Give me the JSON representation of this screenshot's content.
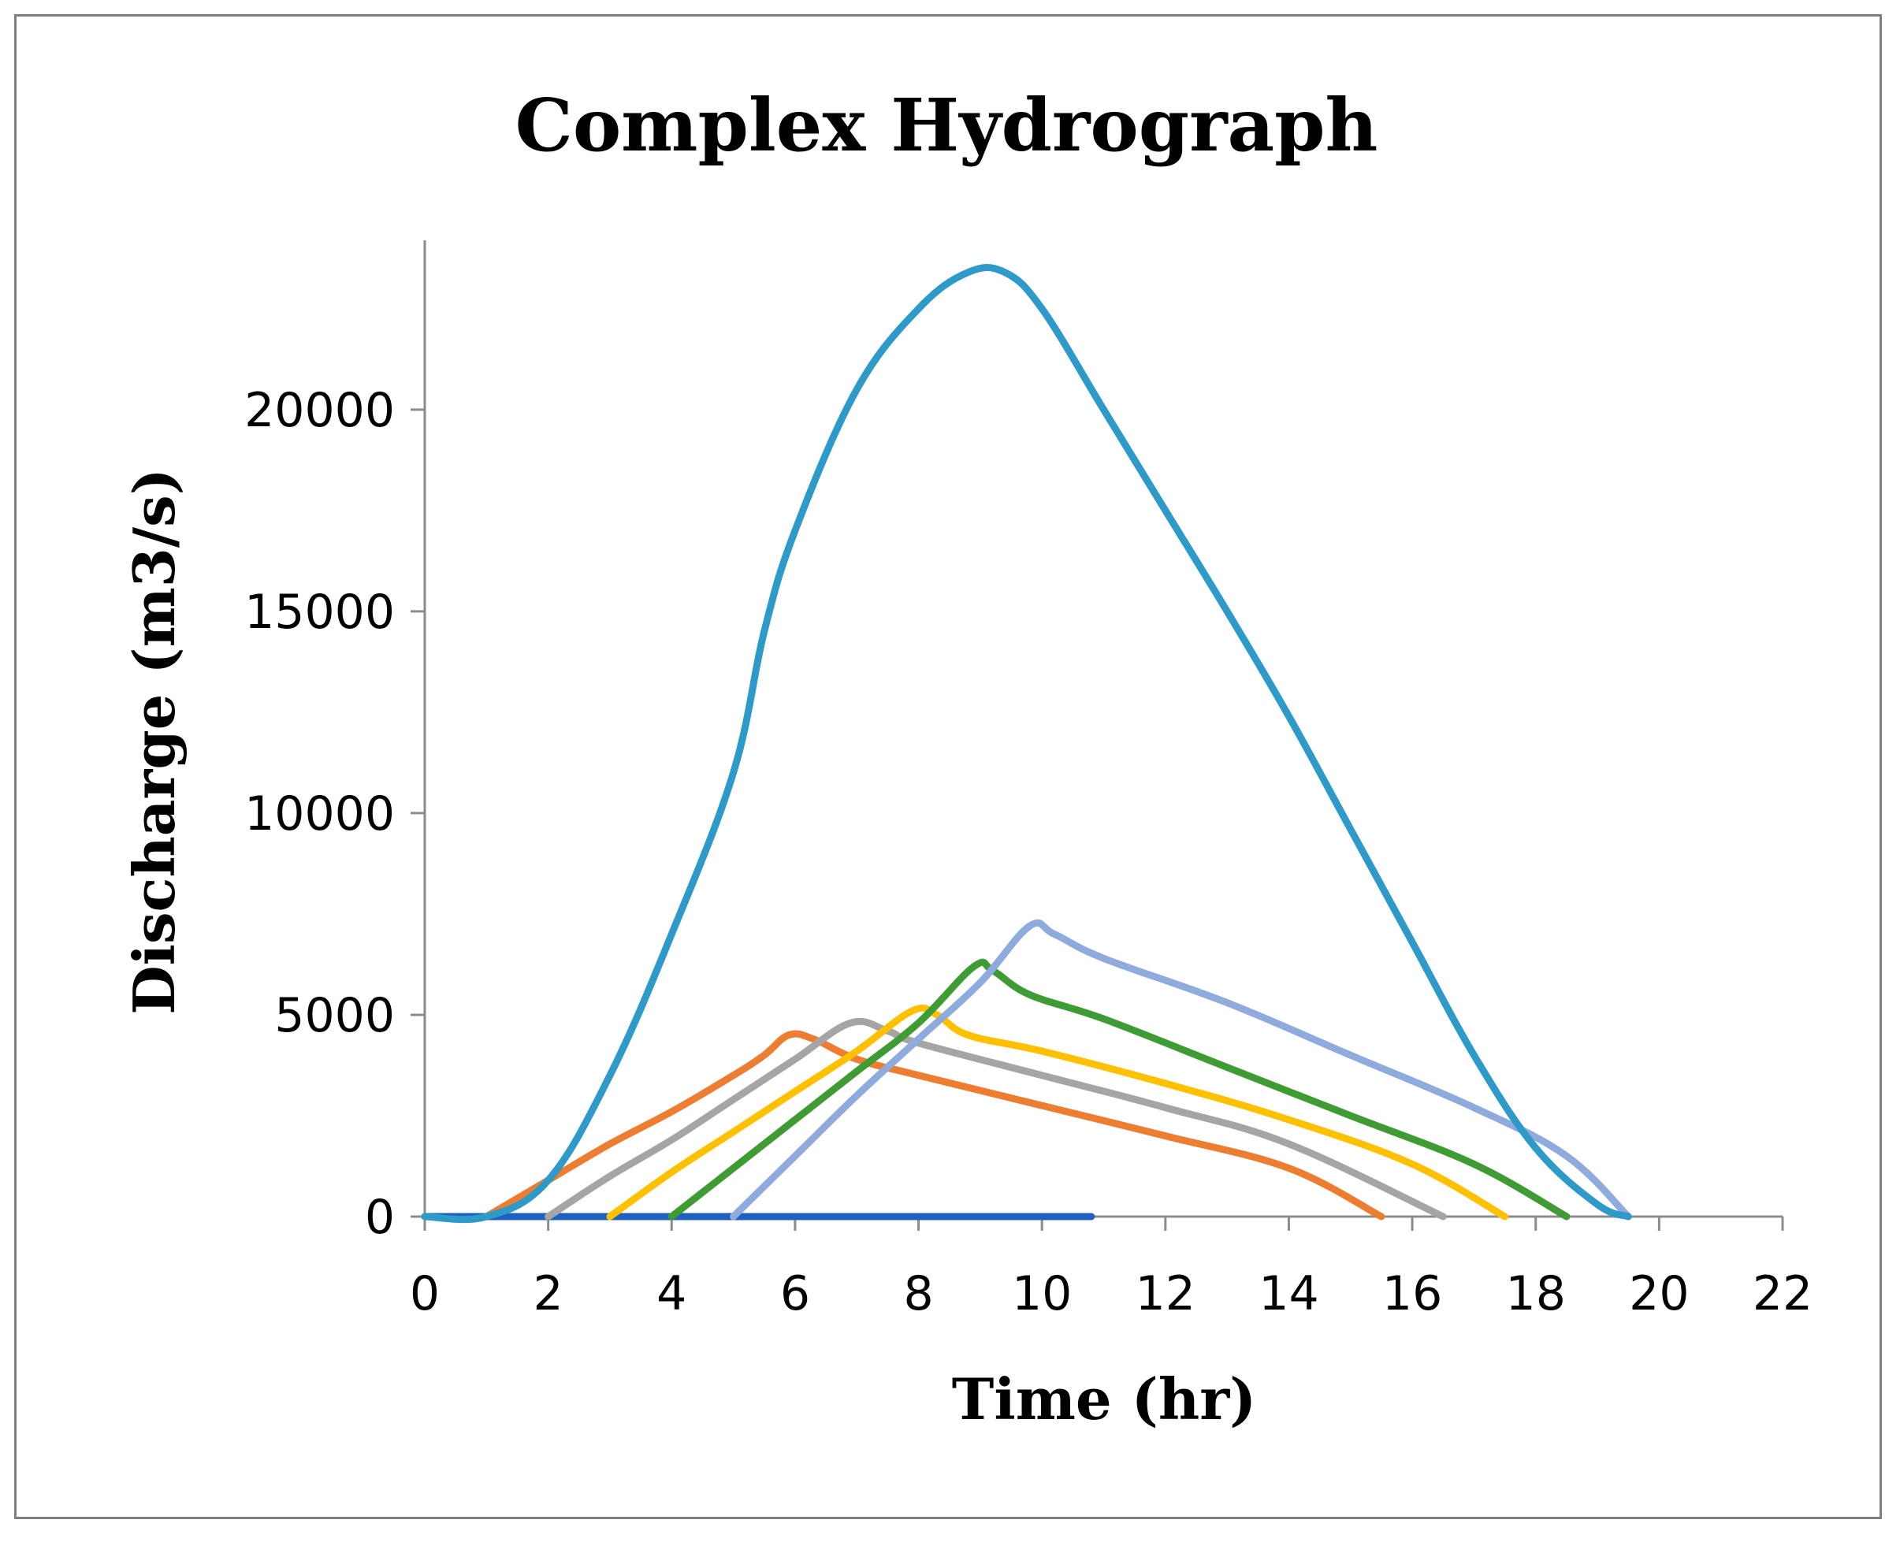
{
  "chart_data": {
    "type": "line",
    "title": "Complex Hydrograph",
    "xlabel": "Time (hr)",
    "ylabel": "Discharge (m3/s)",
    "xlim": [
      0,
      22
    ],
    "ylim": [
      0,
      24000
    ],
    "xticks": [
      0,
      2,
      4,
      6,
      8,
      10,
      12,
      14,
      16,
      18,
      20,
      22
    ],
    "yticks": [
      0,
      5000,
      10000,
      15000,
      20000
    ],
    "grid": false,
    "legend": "none",
    "series": [
      {
        "color": "#1f5fbf",
        "points": [
          [
            0,
            0
          ],
          [
            10.8,
            0
          ]
        ]
      },
      {
        "color": "#ed7d31",
        "points": [
          [
            1,
            0
          ],
          [
            2,
            900
          ],
          [
            3,
            1800
          ],
          [
            4,
            2600
          ],
          [
            5,
            3500
          ],
          [
            5.5,
            4000
          ],
          [
            5.9,
            4500
          ],
          [
            6.3,
            4400
          ],
          [
            7,
            3900
          ],
          [
            8,
            3500
          ],
          [
            10,
            2750
          ],
          [
            12,
            2000
          ],
          [
            14,
            1200
          ],
          [
            15.5,
            0
          ]
        ]
      },
      {
        "color": "#a5a5a5",
        "points": [
          [
            2,
            0
          ],
          [
            3,
            1000
          ],
          [
            4,
            1900
          ],
          [
            5,
            2900
          ],
          [
            6,
            3900
          ],
          [
            6.9,
            4800
          ],
          [
            7.5,
            4600
          ],
          [
            8,
            4300
          ],
          [
            10,
            3500
          ],
          [
            12,
            2700
          ],
          [
            14,
            1800
          ],
          [
            16.5,
            0
          ]
        ]
      },
      {
        "color": "#ffc000",
        "points": [
          [
            3,
            0
          ],
          [
            4,
            1100
          ],
          [
            5,
            2100
          ],
          [
            6,
            3100
          ],
          [
            7,
            4100
          ],
          [
            7.9,
            5100
          ],
          [
            8.3,
            5000
          ],
          [
            8.8,
            4500
          ],
          [
            10,
            4100
          ],
          [
            12,
            3300
          ],
          [
            14,
            2400
          ],
          [
            16,
            1300
          ],
          [
            17.5,
            0
          ]
        ]
      },
      {
        "color": "#3f9c35",
        "points": [
          [
            4,
            0
          ],
          [
            5,
            1200
          ],
          [
            6,
            2400
          ],
          [
            7,
            3600
          ],
          [
            8,
            4800
          ],
          [
            8.9,
            6200
          ],
          [
            9.2,
            6100
          ],
          [
            9.8,
            5500
          ],
          [
            11,
            4900
          ],
          [
            13,
            3700
          ],
          [
            15,
            2500
          ],
          [
            17,
            1300
          ],
          [
            18.5,
            0
          ]
        ]
      },
      {
        "color": "#8faadc",
        "points": [
          [
            5,
            0
          ],
          [
            6,
            1500
          ],
          [
            7,
            3000
          ],
          [
            8,
            4400
          ],
          [
            9,
            5800
          ],
          [
            9.8,
            7200
          ],
          [
            10.2,
            7000
          ],
          [
            11,
            6400
          ],
          [
            13,
            5300
          ],
          [
            15,
            4000
          ],
          [
            17,
            2700
          ],
          [
            18.5,
            1500
          ],
          [
            19.5,
            0
          ]
        ]
      },
      {
        "color": "#2e9ac9",
        "points": [
          [
            0,
            0
          ],
          [
            1,
            0
          ],
          [
            2,
            900
          ],
          [
            3,
            3500
          ],
          [
            4,
            7000
          ],
          [
            5,
            11000
          ],
          [
            5.5,
            14500
          ],
          [
            6,
            17000
          ],
          [
            7,
            20500
          ],
          [
            8,
            22500
          ],
          [
            8.8,
            23400
          ],
          [
            9.4,
            23400
          ],
          [
            10,
            22500
          ],
          [
            11,
            20000
          ],
          [
            12,
            17500
          ],
          [
            13,
            15000
          ],
          [
            14,
            12400
          ],
          [
            15,
            9600
          ],
          [
            16,
            6800
          ],
          [
            17,
            4000
          ],
          [
            18,
            1700
          ],
          [
            19,
            300
          ],
          [
            19.5,
            0
          ]
        ]
      }
    ]
  }
}
